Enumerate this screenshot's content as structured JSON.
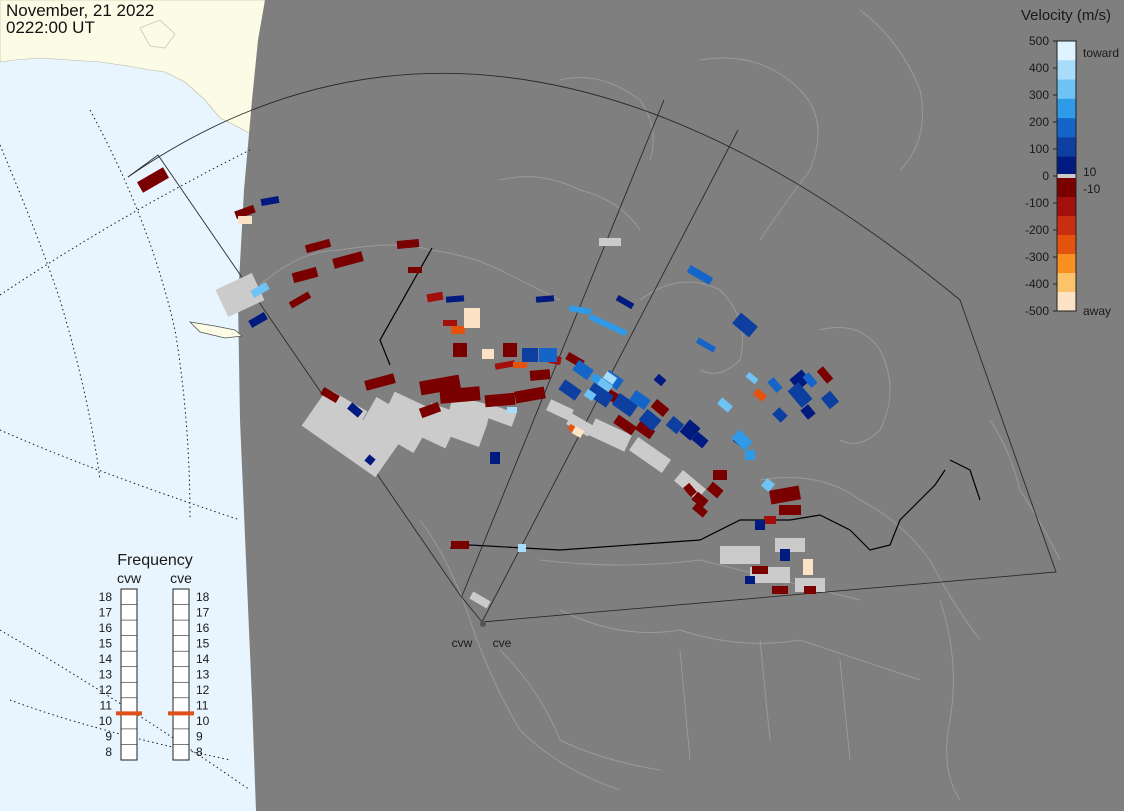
{
  "header": {
    "date": "November, 21 2022",
    "time": "0222:00 UT"
  },
  "colorbar": {
    "title": "Velocity (m/s)",
    "tick_labels": [
      "500",
      "400",
      "300",
      "200",
      "100",
      "0",
      "-100",
      "-200",
      "-300",
      "-400",
      "-500"
    ],
    "toward_label": "toward",
    "away_label": "away",
    "positive_threshold": "10",
    "negative_threshold": "-10",
    "toward_colors": [
      "#dff2ff",
      "#a8dcfb",
      "#6ec3f4",
      "#2e9ae8",
      "#1565c8",
      "#0d3fa0",
      "#001a80"
    ],
    "away_colors": [
      "#7a0000",
      "#a30f0b",
      "#c82f10",
      "#e4530d",
      "#f79020",
      "#fbc46c",
      "#fde3c6"
    ],
    "ground_scatter_color": "#cbcbcb",
    "background_color": "#7f7f7f"
  },
  "frequency_panel": {
    "title": "Frequency",
    "radars": [
      {
        "name": "cvw",
        "current_frequency_mhz": 10.5
      },
      {
        "name": "cve",
        "current_frequency_mhz": 10.5
      }
    ],
    "scale_mhz": [
      "18",
      "17",
      "16",
      "15",
      "14",
      "13",
      "12",
      "11",
      "10",
      "9",
      "8"
    ],
    "indicator_color": "#e0501a"
  },
  "radar_sites": {
    "cvw_label": "cvw",
    "cve_label": "cve"
  },
  "map": {
    "ocean_color": "#e8f5ff",
    "ice_color": "#fbfbe6",
    "night_side_color": "#7f7f7f",
    "coastline_color": "#9a9a9a",
    "boundary_color": "#000000"
  }
}
